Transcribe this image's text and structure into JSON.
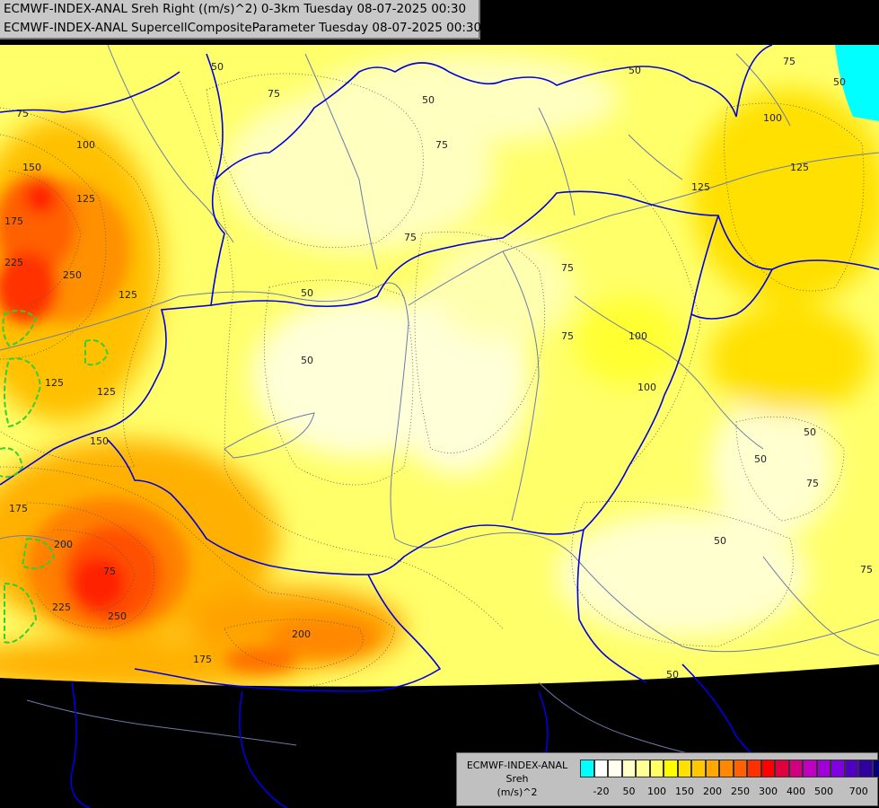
{
  "title": {
    "line1": "ECMWF-INDEX-ANAL Sreh Right ((m/s)^2) 0-3km Tuesday 08-07-2025 00:30",
    "line2": "ECMWF-INDEX-ANAL SupercellCompositeParameter Tuesday 08-07-2025 00:30"
  },
  "legend": {
    "line1": "ECMWF-INDEX-ANAL",
    "line2": "Sreh",
    "line3": "(m/s)^2",
    "swatch_colors": [
      "#00ffff",
      "#ffffff",
      "#fffff0",
      "#ffffc8",
      "#ffff96",
      "#ffff64",
      "#ffff00",
      "#ffe000",
      "#ffc800",
      "#ffa800",
      "#ff8800",
      "#ff6000",
      "#ff3000",
      "#ff0000",
      "#e00040",
      "#d00080",
      "#c000c0",
      "#a000d8",
      "#8000e0",
      "#5000c0",
      "#3000a0",
      "#000080"
    ],
    "ticks": [
      "-20",
      "50",
      "100",
      "150",
      "200",
      "250",
      "300",
      "400",
      "500",
      "700"
    ]
  },
  "contour_labels": [
    "50",
    "75",
    "100",
    "125",
    "150",
    "175",
    "200",
    "225",
    "250"
  ],
  "colors": {
    "background": "#000000",
    "border": "#0000dd",
    "river": "#6a7ca8"
  }
}
